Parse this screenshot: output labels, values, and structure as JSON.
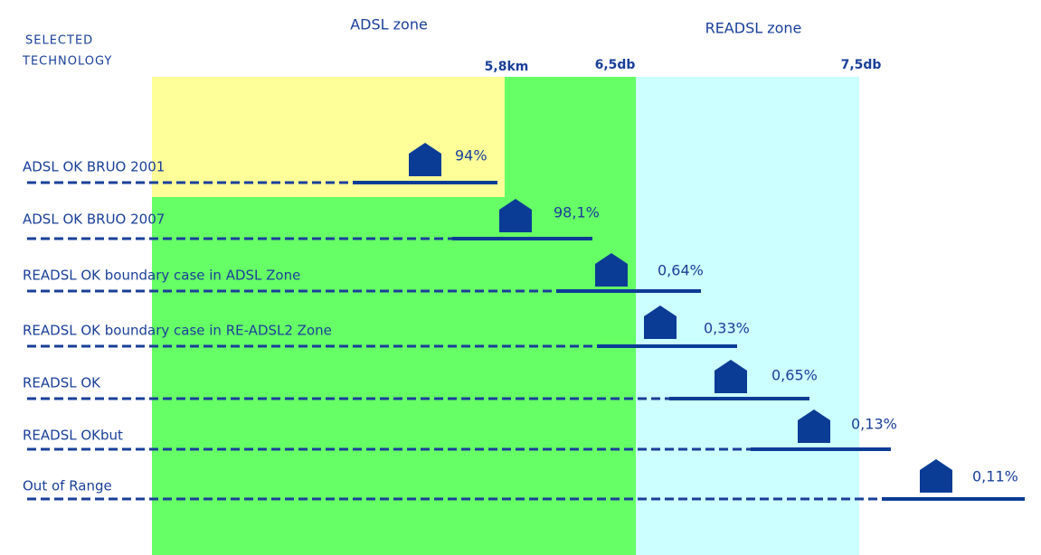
{
  "header": {
    "adsl_zone": "ADSL zone",
    "readsl_zone": "READSL zone",
    "selected_technology": [
      "SELECTED",
      "TECHNOLOGY"
    ]
  },
  "markers": [
    "5,8km",
    "6,5db",
    "7,5db"
  ],
  "rows": [
    {
      "label": "ADSL OK BRUO 2001",
      "percent": "94%"
    },
    {
      "label": "ADSL OK BRUO 2007",
      "percent": "98,1%"
    },
    {
      "label": "READSL OK boundary case in ADSL Zone",
      "percent": "0,64%"
    },
    {
      "label": "READSL OK boundary case in RE-ADSL2 Zone",
      "percent": "0,33%"
    },
    {
      "label": "READSL OK",
      "percent": "0,65%"
    },
    {
      "label": "READSL OKbut",
      "percent": "0,13%"
    },
    {
      "label": "Out of Range",
      "percent": "0,11%"
    }
  ]
}
